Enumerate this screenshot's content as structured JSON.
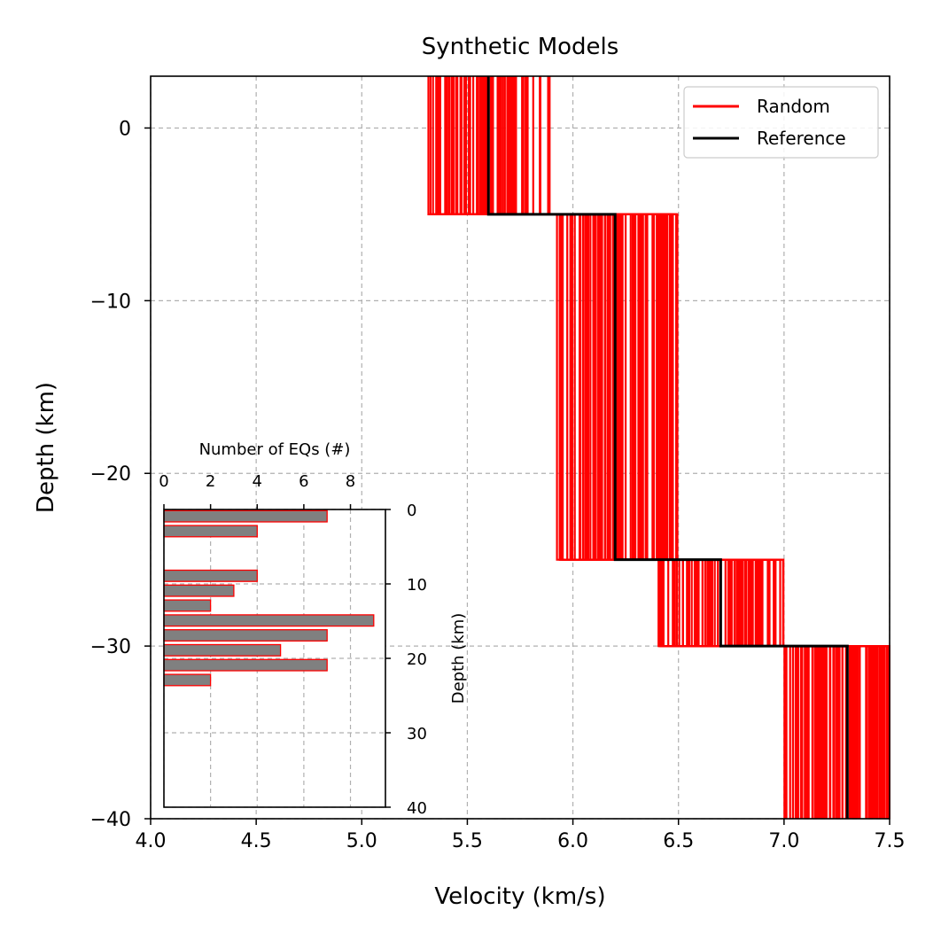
{
  "chart_data": [
    {
      "type": "line",
      "title": "Synthetic Models",
      "xlabel": "Velocity (km/s)",
      "ylabel": "Depth (km)",
      "xlim": [
        4.0,
        7.5
      ],
      "ylim": [
        -40,
        3
      ],
      "xticks": [
        "4.0",
        "4.5",
        "5.0",
        "5.5",
        "6.0",
        "6.5",
        "7.0",
        "7.5"
      ],
      "yticks": [
        "0",
        "−10",
        "−20",
        "−30",
        "−40"
      ],
      "grid": true,
      "legend": "top-right",
      "layer_boundaries": [
        3,
        -5,
        -25,
        -30,
        -40
      ],
      "series": [
        {
          "name": "Random",
          "color": "#ff0000",
          "velocity_ranges": [
            [
              5.3,
              5.9
            ],
            [
              5.92,
              6.5
            ],
            [
              6.4,
              7.0
            ],
            [
              7.0,
              7.5
            ]
          ]
        },
        {
          "name": "Reference",
          "color": "#000000",
          "velocities": [
            5.6,
            6.2,
            6.7,
            7.3
          ]
        }
      ]
    },
    {
      "type": "bar",
      "orientation": "horizontal",
      "xlabel": "Number of EQs (#)",
      "ylabel": "Depth (km)",
      "xlim": [
        0,
        9.5
      ],
      "ylim": [
        0,
        40
      ],
      "xticks": [
        "0",
        "2",
        "4",
        "6",
        "8"
      ],
      "yticks": [
        "0",
        "10",
        "20",
        "30",
        "40"
      ],
      "bin_width_km": 2,
      "bins_start_km": [
        0,
        2,
        8,
        10,
        12,
        14,
        16,
        18,
        20,
        22
      ],
      "values": [
        7,
        4,
        4,
        3,
        2,
        9,
        7,
        5,
        7,
        2
      ],
      "bar_color": "#808080",
      "edge_color": "#ff0000"
    }
  ]
}
